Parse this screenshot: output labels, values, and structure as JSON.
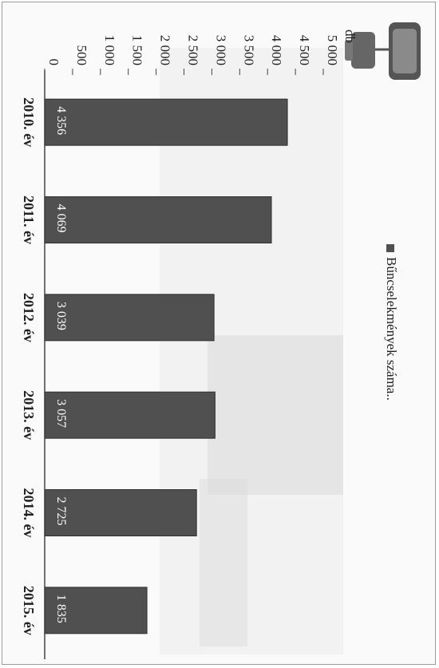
{
  "chart_data": {
    "type": "bar",
    "orientation": "horizontal",
    "categories": [
      "2010. év",
      "2011. év",
      "2012. év",
      "2013. év",
      "2014. év",
      "2015. év"
    ],
    "series": [
      {
        "name": "Bűncselekmények száma..",
        "values": [
          4356,
          4069,
          3039,
          3057,
          2725,
          1835
        ]
      }
    ],
    "data_labels": [
      "4 356",
      "4 069",
      "3 039",
      "3 057",
      "2 725",
      "1 835"
    ],
    "axis_unit": "db",
    "ylim": [
      0,
      5000
    ],
    "ticks": [
      {
        "value": 0,
        "label": "0"
      },
      {
        "value": 500,
        "label": "500"
      },
      {
        "value": 1000,
        "label": "1 000"
      },
      {
        "value": 1500,
        "label": "1 500"
      },
      {
        "value": 2000,
        "label": "2 000"
      },
      {
        "value": 2500,
        "label": "2 500"
      },
      {
        "value": 3000,
        "label": "3 000"
      },
      {
        "value": 3500,
        "label": "3 500"
      },
      {
        "value": 4000,
        "label": "4 000"
      },
      {
        "value": 4500,
        "label": "4 500"
      },
      {
        "value": 5000,
        "label": "5 000"
      }
    ],
    "grid": false,
    "legend_position": "right",
    "colors": {
      "bar": "#505050",
      "bar_edge": "#2f2f2f",
      "text": "#222222",
      "axis": "#444444"
    }
  }
}
